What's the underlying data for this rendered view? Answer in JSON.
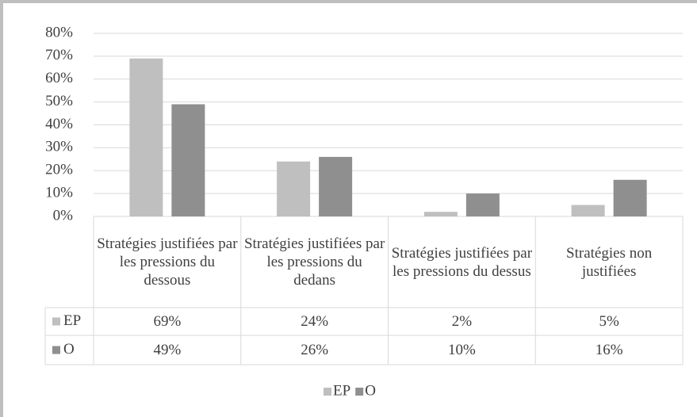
{
  "chart_data": {
    "type": "bar",
    "categories": [
      "Stratégies justifiées par les pressions du dessous",
      "Stratégies justifiées par les pressions du dedans",
      "Stratégies justifiées par les pressions du dessus",
      "Stratégies non justifiées"
    ],
    "series": [
      {
        "name": "EP",
        "color": "#bfbfbf",
        "values": [
          69,
          24,
          2,
          5
        ],
        "value_labels": [
          "69%",
          "24%",
          "2%",
          "5%"
        ]
      },
      {
        "name": "O",
        "color": "#8f8f8f",
        "values": [
          49,
          26,
          10,
          16
        ],
        "value_labels": [
          "49%",
          "26%",
          "10%",
          "16%"
        ]
      }
    ],
    "ylim": [
      0,
      80
    ],
    "yticks": [
      {
        "value": 0,
        "label": "0%"
      },
      {
        "value": 10,
        "label": "10%"
      },
      {
        "value": 20,
        "label": "20%"
      },
      {
        "value": 30,
        "label": "30%"
      },
      {
        "value": 40,
        "label": "40%"
      },
      {
        "value": 50,
        "label": "50%"
      },
      {
        "value": 60,
        "label": "60%"
      },
      {
        "value": 70,
        "label": "70%"
      },
      {
        "value": 80,
        "label": "80%"
      }
    ],
    "grid": true,
    "legend": "bottom"
  }
}
